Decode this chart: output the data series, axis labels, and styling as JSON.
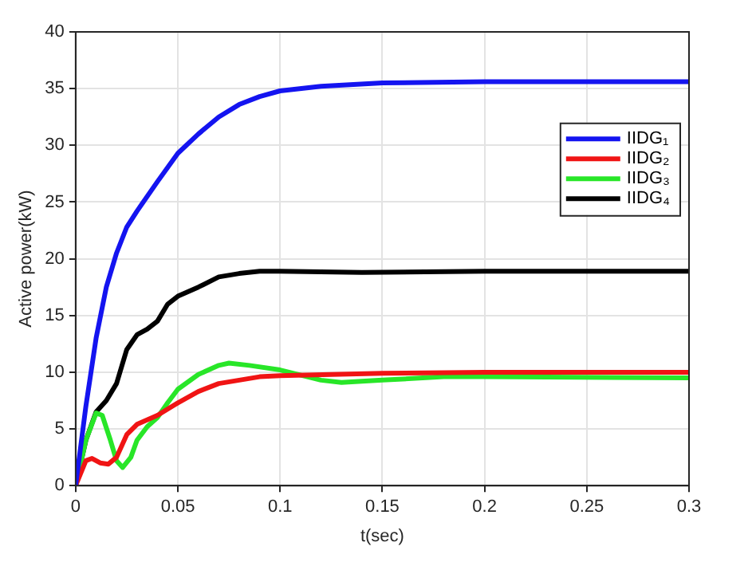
{
  "chart_data": {
    "type": "line",
    "xlabel": "t(sec)",
    "ylabel": "Active power(kW)",
    "xlim": [
      0,
      0.3
    ],
    "xticks": [
      0,
      0.05,
      0.1,
      0.15,
      0.2,
      0.25,
      0.3
    ],
    "ylim": [
      0,
      40
    ],
    "yticks": [
      0,
      5,
      10,
      15,
      20,
      25,
      30,
      35,
      40
    ],
    "grid": true,
    "legend": "top right",
    "marker": "none",
    "line_style": "solid",
    "series": [
      {
        "name": "IIDG₁",
        "color": "#1414f0",
        "x": [
          0,
          0.005,
          0.01,
          0.015,
          0.02,
          0.025,
          0.03,
          0.04,
          0.05,
          0.06,
          0.07,
          0.08,
          0.09,
          0.1,
          0.12,
          0.15,
          0.2,
          0.3
        ],
        "values": [
          0,
          7,
          13,
          17.5,
          20.5,
          22.8,
          24.2,
          26.8,
          29.3,
          31,
          32.5,
          33.6,
          34.3,
          34.8,
          35.2,
          35.5,
          35.6,
          35.6
        ]
      },
      {
        "name": "IIDG₂",
        "color": "#f01414",
        "x": [
          0,
          0.005,
          0.008,
          0.012,
          0.016,
          0.02,
          0.025,
          0.03,
          0.04,
          0.05,
          0.06,
          0.07,
          0.08,
          0.09,
          0.1,
          0.15,
          0.2,
          0.3
        ],
        "values": [
          0,
          2.2,
          2.4,
          2,
          1.9,
          2.5,
          4.5,
          5.4,
          6.2,
          7.3,
          8.3,
          9,
          9.3,
          9.6,
          9.7,
          9.9,
          10,
          10
        ]
      },
      {
        "name": "IIDG₃",
        "color": "#28e628",
        "x": [
          0,
          0.005,
          0.01,
          0.013,
          0.017,
          0.02,
          0.023,
          0.027,
          0.03,
          0.035,
          0.04,
          0.045,
          0.05,
          0.06,
          0.07,
          0.075,
          0.085,
          0.1,
          0.12,
          0.13,
          0.15,
          0.18,
          0.2,
          0.3
        ],
        "values": [
          0,
          4,
          6.4,
          6.2,
          4,
          2.2,
          1.6,
          2.5,
          4,
          5.2,
          6,
          7.3,
          8.5,
          9.8,
          10.6,
          10.8,
          10.6,
          10.2,
          9.3,
          9.1,
          9.3,
          9.6,
          9.6,
          9.5
        ]
      },
      {
        "name": "IIDG₄",
        "color": "#000000",
        "x": [
          0,
          0.005,
          0.01,
          0.015,
          0.02,
          0.025,
          0.03,
          0.035,
          0.04,
          0.045,
          0.05,
          0.06,
          0.07,
          0.08,
          0.09,
          0.1,
          0.14,
          0.2,
          0.3
        ],
        "values": [
          0,
          4,
          6.5,
          7.5,
          9,
          12,
          13.3,
          13.8,
          14.5,
          16,
          16.7,
          17.5,
          18.4,
          18.7,
          18.9,
          18.9,
          18.8,
          18.9,
          18.9
        ]
      }
    ]
  }
}
